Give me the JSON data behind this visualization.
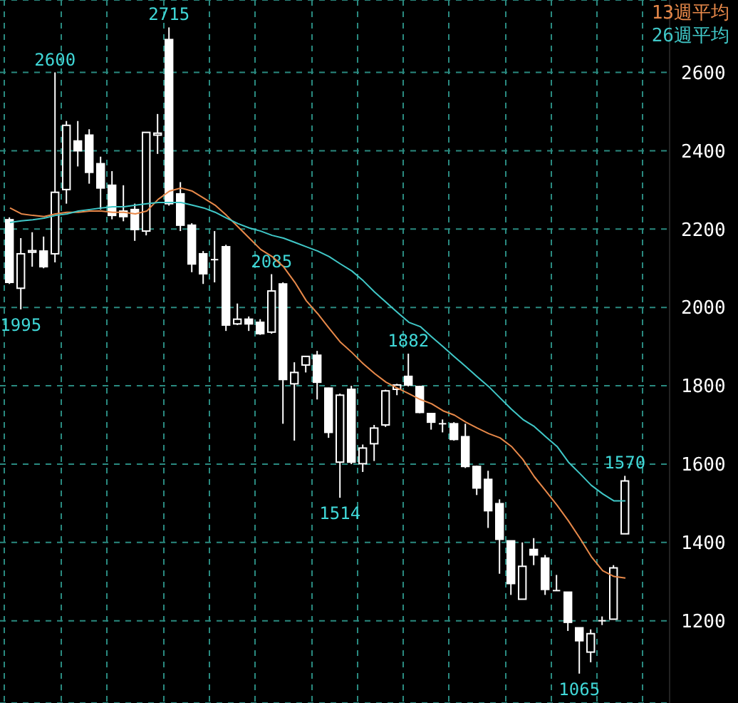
{
  "chart_data": {
    "type": "candlestick",
    "categories": [
      null,
      null,
      null,
      null,
      null,
      null,
      null,
      null,
      null,
      null,
      null,
      null,
      null,
      null,
      null,
      null,
      null,
      null,
      null,
      null,
      null,
      null,
      null,
      null,
      null,
      null,
      null,
      null,
      null,
      null,
      null,
      null,
      null,
      null,
      null,
      null,
      null,
      null,
      null,
      null,
      null,
      null,
      null,
      null,
      null,
      null,
      null,
      null,
      null,
      null,
      null,
      null,
      null,
      null,
      null
    ],
    "ohlc": [
      [
        2224,
        2230,
        2060,
        2064
      ],
      [
        2049,
        2177,
        1995,
        2137
      ],
      [
        2141,
        2192,
        2104,
        2145
      ],
      [
        2144,
        2181,
        2100,
        2104
      ],
      [
        2137,
        2600,
        2115,
        2294
      ],
      [
        2301,
        2476,
        2265,
        2465
      ],
      [
        2425,
        2476,
        2360,
        2400
      ],
      [
        2440,
        2455,
        2316,
        2345
      ],
      [
        2367,
        2385,
        2250,
        2305
      ],
      [
        2312,
        2348,
        2225,
        2235
      ],
      [
        2246,
        2312,
        2220,
        2232
      ],
      [
        2250,
        2265,
        2170,
        2199
      ],
      [
        2195,
        2447,
        2184,
        2447
      ],
      [
        2440,
        2494,
        2392,
        2445
      ],
      [
        2684,
        2715,
        2260,
        2265
      ],
      [
        2290,
        2320,
        2195,
        2210
      ],
      [
        2210,
        2215,
        2090,
        2111
      ],
      [
        2137,
        2144,
        2060,
        2086
      ],
      [
        2120,
        2195,
        2064,
        2122
      ],
      [
        2155,
        2160,
        1940,
        1955
      ],
      [
        1958,
        2010,
        1955,
        1970
      ],
      [
        1970,
        1977,
        1940,
        1958
      ],
      [
        1962,
        1970,
        1930,
        1933
      ],
      [
        1937,
        2085,
        1933,
        2042
      ],
      [
        2060,
        2064,
        1703,
        1816
      ],
      [
        1805,
        1860,
        1660,
        1834
      ],
      [
        1853,
        1875,
        1834,
        1875
      ],
      [
        1878,
        1889,
        1765,
        1809
      ],
      [
        1794,
        1795,
        1667,
        1681
      ],
      [
        1605,
        1780,
        1514,
        1776
      ],
      [
        1791,
        1800,
        1600,
        1605
      ],
      [
        1601,
        1650,
        1580,
        1641
      ],
      [
        1652,
        1700,
        1608,
        1692
      ],
      [
        1700,
        1790,
        1695,
        1787
      ],
      [
        1791,
        1805,
        1776,
        1802
      ],
      [
        1824,
        1882,
        1798,
        1802
      ],
      [
        1798,
        1800,
        1730,
        1732
      ],
      [
        1729,
        1730,
        1688,
        1707
      ],
      [
        1703,
        1714,
        1681,
        1700
      ],
      [
        1703,
        1707,
        1660,
        1663
      ],
      [
        1670,
        1703,
        1590,
        1594
      ],
      [
        1594,
        1596,
        1521,
        1539
      ],
      [
        1561,
        1583,
        1437,
        1481
      ],
      [
        1499,
        1510,
        1320,
        1408
      ],
      [
        1404,
        1405,
        1266,
        1295
      ],
      [
        1255,
        1400,
        1255,
        1339
      ],
      [
        1382,
        1411,
        1342,
        1368
      ],
      [
        1360,
        1368,
        1266,
        1280
      ],
      [
        1277,
        1317,
        1277,
        1277
      ],
      [
        1273,
        1273,
        1174,
        1196
      ],
      [
        1182,
        1182,
        1065,
        1149
      ],
      [
        1120,
        1178,
        1094,
        1167
      ],
      [
        1200,
        1211,
        1189,
        1200
      ],
      [
        1204,
        1342,
        1204,
        1335
      ],
      [
        1422,
        1570,
        1422,
        1557
      ]
    ],
    "series": [
      {
        "name": "13週平均",
        "type": "line",
        "color": "#e8894a",
        "values": [
          2254,
          2239,
          2235,
          2232,
          2239,
          2243,
          2243,
          2246,
          2246,
          2243,
          2243,
          2239,
          2246,
          2276,
          2297,
          2305,
          2297,
          2279,
          2261,
          2235,
          2206,
          2177,
          2148,
          2130,
          2104,
          2064,
          2017,
          1984,
          1947,
          1911,
          1885,
          1856,
          1831,
          1809,
          1794,
          1780,
          1765,
          1754,
          1736,
          1725,
          1707,
          1692,
          1678,
          1667,
          1645,
          1612,
          1568,
          1532,
          1495,
          1455,
          1411,
          1364,
          1328,
          1313,
          1309
        ]
      },
      {
        "name": "26週平均",
        "type": "line",
        "color": "#40c8c8",
        "values": [
          2217,
          2221,
          2224,
          2228,
          2235,
          2239,
          2246,
          2250,
          2254,
          2257,
          2257,
          2261,
          2265,
          2268,
          2268,
          2268,
          2261,
          2254,
          2243,
          2228,
          2214,
          2203,
          2195,
          2184,
          2177,
          2166,
          2155,
          2144,
          2130,
          2111,
          2093,
          2068,
          2039,
          2013,
          1987,
          1962,
          1951,
          1925,
          1900,
          1874,
          1849,
          1823,
          1798,
          1769,
          1740,
          1714,
          1696,
          1670,
          1645,
          1605,
          1576,
          1546,
          1524,
          1506,
          1506
        ]
      }
    ],
    "ylim": [
      990,
      2785
    ],
    "yticks": [
      1200,
      1400,
      1600,
      1800,
      2000,
      2200,
      2400,
      2600
    ],
    "grid": true,
    "legend": "top right",
    "annotations": [
      {
        "text": "2715",
        "y": 2715
      },
      {
        "text": "2600",
        "y": 2600
      },
      {
        "text": "1995",
        "y": 1995
      },
      {
        "text": "2085",
        "y": 2085
      },
      {
        "text": "1882",
        "y": 1882
      },
      {
        "text": "1514",
        "y": 1514
      },
      {
        "text": "1570",
        "y": 1570
      },
      {
        "text": "1065",
        "y": 1065
      }
    ]
  }
}
